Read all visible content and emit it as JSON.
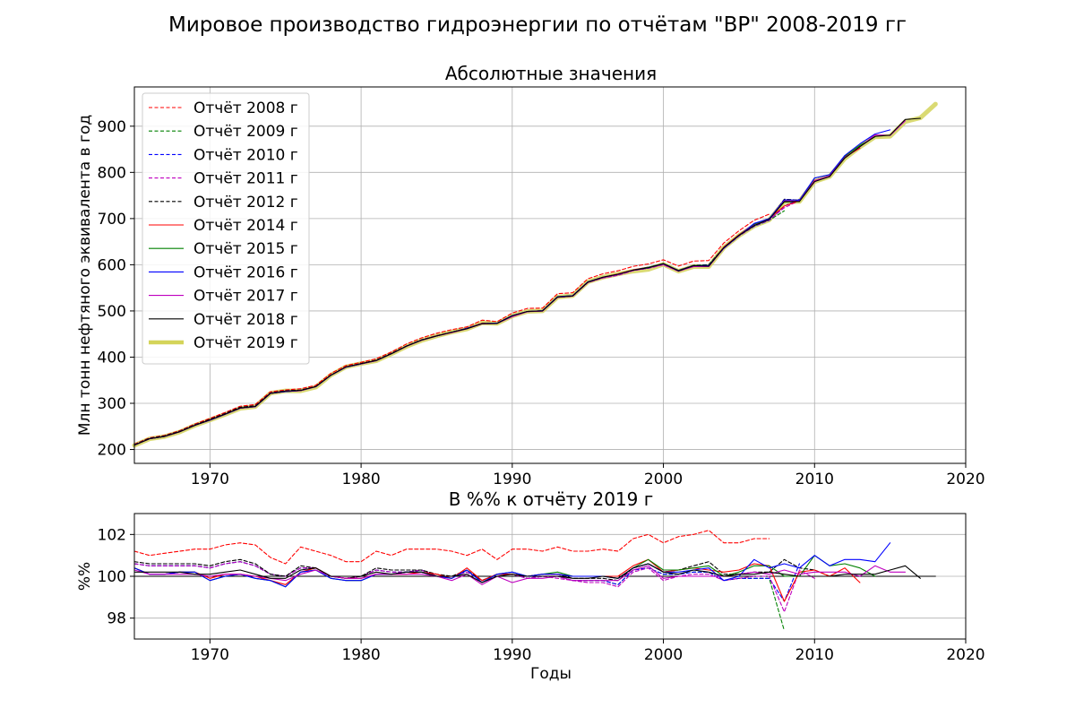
{
  "chart_data": [
    {
      "type": "line",
      "suptitle": "Мировое производство гидроэнергии по отчётам \"BP\" 2008-2019 гг",
      "title": "Абсолютные значения",
      "xlabel": "",
      "ylabel": "Млн тонн нефтяного эквивалента в год",
      "xlim": [
        1965,
        2020
      ],
      "ylim": [
        170,
        985
      ],
      "xticks": [
        1970,
        1980,
        1990,
        2000,
        2010,
        2020
      ],
      "yticks": [
        200,
        300,
        400,
        500,
        600,
        700,
        800,
        900
      ],
      "grid": true,
      "legend_position": "upper-left",
      "base_series": {
        "name": "Отчёт 2019 г",
        "x": [
          1965,
          1966,
          1967,
          1968,
          1969,
          1970,
          1971,
          1972,
          1973,
          1974,
          1975,
          1976,
          1977,
          1978,
          1979,
          1980,
          1981,
          1982,
          1983,
          1984,
          1985,
          1986,
          1987,
          1988,
          1989,
          1990,
          1991,
          1992,
          1993,
          1994,
          1995,
          1996,
          1997,
          1998,
          1999,
          2000,
          2001,
          2002,
          2003,
          2004,
          2005,
          2006,
          2007,
          2008,
          2009,
          2010,
          2011,
          2012,
          2013,
          2014,
          2015,
          2016,
          2017,
          2018
        ],
        "values": [
          209,
          223,
          228,
          238,
          252,
          264,
          276,
          289,
          293,
          322,
          327,
          327,
          335,
          361,
          379,
          386,
          392,
          407,
          423,
          436,
          446,
          454,
          461,
          474,
          473,
          489,
          499,
          500,
          530,
          533,
          563,
          573,
          580,
          586,
          590,
          601,
          586,
          596,
          596,
          637,
          663,
          684,
          697,
          736,
          737,
          780,
          791,
          830,
          855,
          877,
          878,
          910,
          918,
          948
        ]
      },
      "series": [
        {
          "name": "Отчёт 2008 г",
          "color": "#ff0000",
          "style": "dashed",
          "last_year": 2007,
          "pct": [
            101.2,
            101.0,
            101.1,
            101.2,
            101.3,
            101.3,
            101.5,
            101.6,
            101.5,
            100.9,
            100.6,
            101.4,
            101.2,
            101.0,
            100.7,
            100.7,
            101.2,
            101.0,
            101.3,
            101.3,
            101.3,
            101.2,
            101.0,
            101.3,
            100.8,
            101.3,
            101.3,
            101.2,
            101.4,
            101.2,
            101.2,
            101.3,
            101.2,
            101.8,
            102.0,
            101.6,
            101.9,
            102.0,
            102.2,
            101.6,
            101.6,
            101.8,
            101.8
          ]
        },
        {
          "name": "Отчёт 2009 г",
          "color": "#008000",
          "style": "dashed",
          "last_year": 2008,
          "pct": [
            100.6,
            100.5,
            100.5,
            100.5,
            100.5,
            100.4,
            100.6,
            100.7,
            100.5,
            100.1,
            100.0,
            100.4,
            100.4,
            100.0,
            99.9,
            100.0,
            100.3,
            100.2,
            100.2,
            100.3,
            100.0,
            100.0,
            100.2,
            99.8,
            100.1,
            100.1,
            99.9,
            100.0,
            100.0,
            99.8,
            99.8,
            99.8,
            99.6,
            100.3,
            100.4,
            100.1,
            100.1,
            100.2,
            100.2,
            99.8,
            99.9,
            99.9,
            99.9,
            97.4
          ]
        },
        {
          "name": "Отчёт 2010 г",
          "color": "#0000ff",
          "style": "dashed",
          "last_year": 2009,
          "pct": [
            100.6,
            100.5,
            100.5,
            100.5,
            100.5,
            100.4,
            100.6,
            100.7,
            100.5,
            100.1,
            100.0,
            100.4,
            100.4,
            100.0,
            99.9,
            100.0,
            100.3,
            100.2,
            100.2,
            100.3,
            100.0,
            100.0,
            100.2,
            99.8,
            100.1,
            100.1,
            99.9,
            100.0,
            100.0,
            99.8,
            99.8,
            99.8,
            99.6,
            100.3,
            100.4,
            100.1,
            100.1,
            100.2,
            100.2,
            99.8,
            99.9,
            99.9,
            99.9,
            98.8,
            100.6
          ]
        },
        {
          "name": "Отчёт 2011 г",
          "color": "#bf00bf",
          "style": "dashed",
          "last_year": 2010,
          "pct": [
            100.6,
            100.5,
            100.5,
            100.5,
            100.5,
            100.4,
            100.6,
            100.7,
            100.5,
            100.1,
            100.0,
            100.4,
            100.4,
            100.0,
            99.9,
            100.0,
            100.3,
            100.2,
            100.2,
            100.3,
            100.0,
            100.0,
            100.2,
            99.8,
            100.1,
            100.1,
            99.9,
            100.0,
            99.9,
            99.8,
            99.7,
            99.7,
            99.5,
            100.2,
            100.4,
            99.8,
            100.0,
            100.1,
            100.1,
            99.8,
            99.9,
            100.0,
            100.0,
            98.3,
            100.3,
            99.9
          ]
        },
        {
          "name": "Отчёт 2012 г",
          "color": "#000000",
          "style": "dashed",
          "last_year": 2011,
          "pct": [
            100.7,
            100.6,
            100.6,
            100.6,
            100.6,
            100.5,
            100.7,
            100.8,
            100.6,
            100.1,
            100.0,
            100.5,
            100.4,
            100.0,
            99.9,
            100.0,
            100.4,
            100.3,
            100.3,
            100.3,
            100.1,
            100.0,
            100.3,
            99.8,
            100.1,
            100.1,
            100.0,
            100.1,
            100.1,
            99.9,
            99.9,
            99.9,
            99.8,
            100.4,
            100.6,
            100.2,
            100.3,
            100.5,
            100.7,
            100.1,
            100.1,
            100.2,
            100.2,
            100.8,
            100.4,
            100.3,
            100.0
          ]
        },
        {
          "name": "Отчёт 2014 г",
          "color": "#ff0000",
          "style": "solid",
          "last_year": 2013,
          "pct": [
            100.4,
            100.1,
            100.1,
            100.2,
            100.2,
            99.9,
            100.1,
            100.1,
            100.0,
            99.8,
            99.6,
            100.2,
            100.4,
            100.0,
            99.9,
            99.9,
            100.1,
            100.1,
            100.1,
            100.2,
            100.1,
            99.9,
            100.4,
            99.8,
            100.1,
            100.1,
            100.0,
            100.1,
            100.1,
            100.0,
            100.0,
            100.0,
            100.0,
            100.5,
            100.8,
            100.2,
            100.3,
            100.4,
            100.3,
            100.2,
            100.3,
            100.6,
            100.5,
            98.8,
            100.2,
            100.3,
            100.0,
            100.4,
            99.7
          ]
        },
        {
          "name": "Отчёт 2015 г",
          "color": "#008000",
          "style": "solid",
          "last_year": 2014,
          "pct": [
            100.4,
            100.1,
            100.1,
            100.2,
            100.2,
            99.8,
            100.0,
            100.1,
            99.9,
            99.8,
            99.5,
            100.2,
            100.3,
            99.9,
            99.8,
            99.8,
            100.1,
            100.1,
            100.2,
            100.2,
            100.0,
            99.9,
            100.3,
            99.7,
            100.1,
            100.2,
            100.0,
            100.1,
            100.2,
            100.0,
            100.0,
            100.0,
            99.9,
            100.4,
            100.8,
            100.3,
            100.3,
            100.4,
            100.5,
            100.0,
            100.2,
            100.5,
            100.5,
            100.0,
            100.0,
            101.0,
            100.5,
            100.6,
            100.4,
            100.0
          ]
        },
        {
          "name": "Отчёт 2016 г",
          "color": "#0000ff",
          "style": "solid",
          "last_year": 2015,
          "pct": [
            100.4,
            100.1,
            100.1,
            100.2,
            100.2,
            99.8,
            100.0,
            100.1,
            99.9,
            99.8,
            99.5,
            100.2,
            100.3,
            99.9,
            99.8,
            99.8,
            100.1,
            100.1,
            100.2,
            100.2,
            100.0,
            99.9,
            100.3,
            99.7,
            100.1,
            100.2,
            100.0,
            100.1,
            100.1,
            100.0,
            100.0,
            100.0,
            99.9,
            100.4,
            100.6,
            100.2,
            100.2,
            100.3,
            100.4,
            99.8,
            100.0,
            100.8,
            100.4,
            100.6,
            100.4,
            101.0,
            100.5,
            100.8,
            100.8,
            100.7,
            101.6
          ]
        },
        {
          "name": "Отчёт 2017 г",
          "color": "#bf00bf",
          "style": "solid",
          "last_year": 2016,
          "pct": [
            100.3,
            100.1,
            100.1,
            100.1,
            100.1,
            100.0,
            100.1,
            100.1,
            100.0,
            99.9,
            99.8,
            100.1,
            100.3,
            100.0,
            99.9,
            99.9,
            100.1,
            100.1,
            100.1,
            100.1,
            100.0,
            99.8,
            100.1,
            99.6,
            100.0,
            99.7,
            99.9,
            99.9,
            100.0,
            99.8,
            99.8,
            99.8,
            99.8,
            100.3,
            100.5,
            99.9,
            100.0,
            100.0,
            100.0,
            100.0,
            100.1,
            100.2,
            100.1,
            100.3,
            100.1,
            100.2,
            100.2,
            100.2,
            100.0,
            100.5,
            100.2,
            100.2
          ]
        },
        {
          "name": "Отчёт 2018 г",
          "color": "#000000",
          "style": "solid",
          "last_year": 2017,
          "pct": [
            100.2,
            100.2,
            100.2,
            100.2,
            100.1,
            100.1,
            100.2,
            100.3,
            100.1,
            99.9,
            99.9,
            100.3,
            100.4,
            100.0,
            100.0,
            100.0,
            100.2,
            100.1,
            100.2,
            100.2,
            100.0,
            100.0,
            100.1,
            99.7,
            100.0,
            100.1,
            100.0,
            100.0,
            100.0,
            99.9,
            99.9,
            100.0,
            99.9,
            100.4,
            100.6,
            100.2,
            100.1,
            100.3,
            100.2,
            100.0,
            100.1,
            100.1,
            100.2,
            100.1,
            100.0,
            100.0,
            100.0,
            100.1,
            100.1,
            100.1,
            100.3,
            100.5,
            99.9
          ]
        },
        {
          "name": "Отчёт 2019 г",
          "color": "#d4d45a",
          "style": "thick",
          "last_year": 2018
        }
      ]
    },
    {
      "type": "line",
      "title": "В %% к отчёту 2019 г",
      "xlabel": "Годы",
      "ylabel": "%%",
      "xlim": [
        1965,
        2020
      ],
      "ylim": [
        97.0,
        103.0
      ],
      "xticks": [
        1970,
        1980,
        1990,
        2000,
        2010,
        2020
      ],
      "yticks": [
        98,
        100,
        102
      ],
      "grid": true,
      "note": "Same series as above, plotted as percent of the 2019 report; reference line at 100."
    }
  ]
}
